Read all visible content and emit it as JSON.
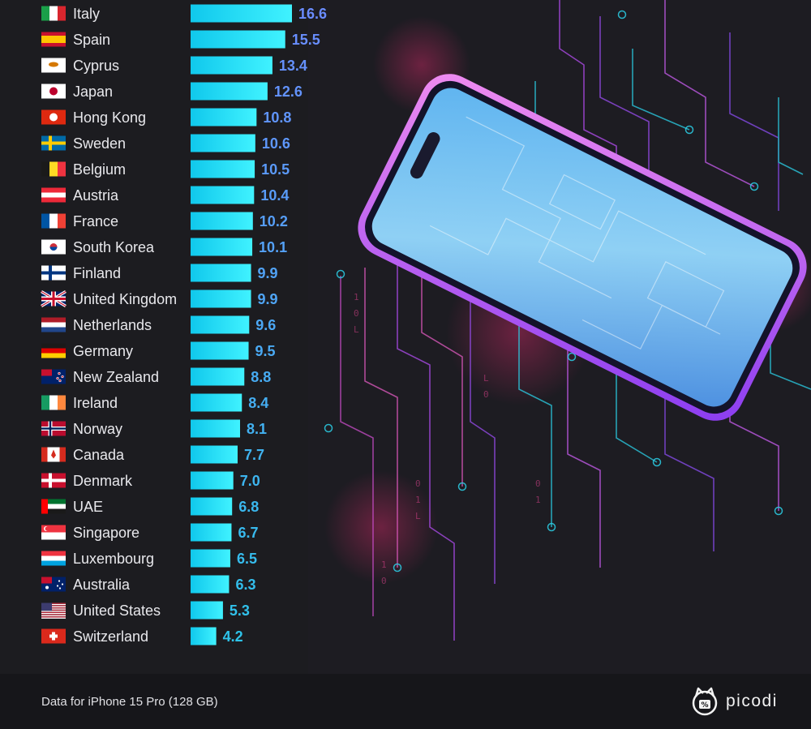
{
  "chart_data": {
    "type": "bar",
    "orientation": "horizontal",
    "categories": [
      "Italy",
      "Spain",
      "Cyprus",
      "Japan",
      "Hong Kong",
      "Sweden",
      "Belgium",
      "Austria",
      "France",
      "South Korea",
      "Finland",
      "United Kingdom",
      "Netherlands",
      "Germany",
      "New Zealand",
      "Ireland",
      "Norway",
      "Canada",
      "Denmark",
      "UAE",
      "Singapore",
      "Luxembourg",
      "Australia",
      "United States",
      "Switzerland"
    ],
    "values": [
      16.6,
      15.5,
      13.4,
      12.6,
      10.8,
      10.6,
      10.5,
      10.4,
      10.2,
      10.1,
      9.9,
      9.9,
      9.6,
      9.5,
      8.8,
      8.4,
      8.1,
      7.7,
      7.0,
      6.8,
      6.7,
      6.5,
      6.3,
      5.3,
      4.2
    ],
    "value_labels": [
      "16.6",
      "15.5",
      "13.4",
      "12.6",
      "10.8",
      "10.6",
      "10.5",
      "10.4",
      "10.2",
      "10.1",
      "9.9",
      "9.9",
      "9.6",
      "9.5",
      "8.8",
      "8.4",
      "8.1",
      "7.7",
      "7.0",
      "6.8",
      "6.7",
      "6.5",
      "6.3",
      "5.3",
      "4.2"
    ],
    "flag_icons": [
      "italy-flag-icon",
      "spain-flag-icon",
      "cyprus-flag-icon",
      "japan-flag-icon",
      "hong-kong-flag-icon",
      "sweden-flag-icon",
      "belgium-flag-icon",
      "austria-flag-icon",
      "france-flag-icon",
      "south-korea-flag-icon",
      "finland-flag-icon",
      "united-kingdom-flag-icon",
      "netherlands-flag-icon",
      "germany-flag-icon",
      "new-zealand-flag-icon",
      "ireland-flag-icon",
      "norway-flag-icon",
      "canada-flag-icon",
      "denmark-flag-icon",
      "uae-flag-icon",
      "singapore-flag-icon",
      "luxembourg-flag-icon",
      "australia-flag-icon",
      "united-states-flag-icon",
      "switzerland-flag-icon"
    ],
    "xlim": [
      0,
      16.6
    ],
    "grid": false,
    "legend": "none",
    "colors": {
      "bar_gradient_start": "#10c8ec",
      "bar_gradient_end": "#40f2ff",
      "value_label_high": "#6a8cff",
      "value_label_low": "#2ec3ea"
    }
  },
  "footer": {
    "source_note": "Data for iPhone 15 Pro (128 GB)",
    "logo_text": "picodi",
    "logo_icon": "picodi-cat-logo-icon"
  },
  "background": {
    "illustration": "iphone-circuit-illustration"
  }
}
